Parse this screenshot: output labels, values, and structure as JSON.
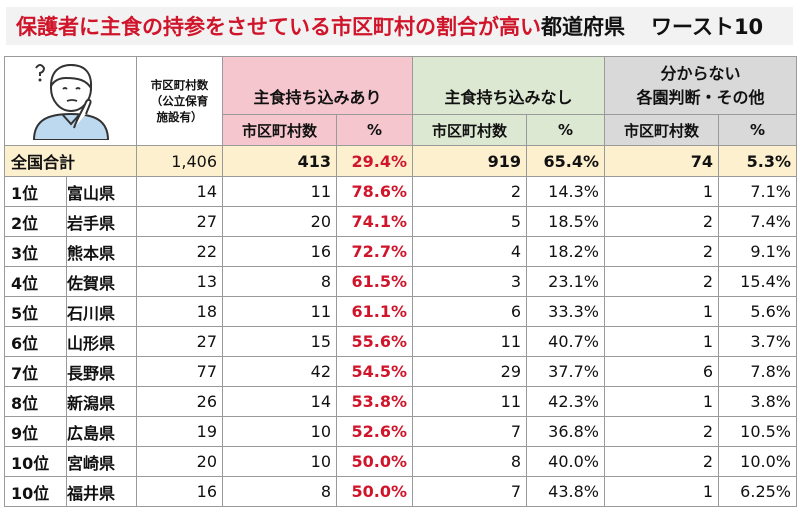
{
  "title": {
    "main": "保護者に主食の持参をさせている市区町村の割合が高い",
    "suffix": "都道府県",
    "ranking": "ワースト10"
  },
  "header": {
    "muni_count_lines": [
      "市区町村数",
      "（公立保育",
      "施設有）"
    ],
    "group_yes": "主食持ち込みあり",
    "group_no": "主食持ち込みなし",
    "group_other_line1": "分からない",
    "group_other_line2": "各園判断・その他",
    "sub_count": "市区町村数",
    "sub_pct": "%"
  },
  "total": {
    "label": "全国合計",
    "munis": "1,406",
    "yes_count": "413",
    "yes_pct": "29.4%",
    "no_count": "919",
    "no_pct": "65.4%",
    "other_count": "74",
    "other_pct": "5.3%"
  },
  "rows": [
    {
      "rank": "1位",
      "pref": "富山県",
      "munis": "14",
      "yes_count": "11",
      "yes_pct": "78.6%",
      "no_count": "2",
      "no_pct": "14.3%",
      "other_count": "1",
      "other_pct": "7.1%"
    },
    {
      "rank": "2位",
      "pref": "岩手県",
      "munis": "27",
      "yes_count": "20",
      "yes_pct": "74.1%",
      "no_count": "5",
      "no_pct": "18.5%",
      "other_count": "2",
      "other_pct": "7.4%"
    },
    {
      "rank": "3位",
      "pref": "熊本県",
      "munis": "22",
      "yes_count": "16",
      "yes_pct": "72.7%",
      "no_count": "4",
      "no_pct": "18.2%",
      "other_count": "2",
      "other_pct": "9.1%"
    },
    {
      "rank": "4位",
      "pref": "佐賀県",
      "munis": "13",
      "yes_count": "8",
      "yes_pct": "61.5%",
      "no_count": "3",
      "no_pct": "23.1%",
      "other_count": "2",
      "other_pct": "15.4%"
    },
    {
      "rank": "5位",
      "pref": "石川県",
      "munis": "18",
      "yes_count": "11",
      "yes_pct": "61.1%",
      "no_count": "6",
      "no_pct": "33.3%",
      "other_count": "1",
      "other_pct": "5.6%"
    },
    {
      "rank": "6位",
      "pref": "山形県",
      "munis": "27",
      "yes_count": "15",
      "yes_pct": "55.6%",
      "no_count": "11",
      "no_pct": "40.7%",
      "other_count": "1",
      "other_pct": "3.7%"
    },
    {
      "rank": "7位",
      "pref": "長野県",
      "munis": "77",
      "yes_count": "42",
      "yes_pct": "54.5%",
      "no_count": "29",
      "no_pct": "37.7%",
      "other_count": "6",
      "other_pct": "7.8%"
    },
    {
      "rank": "8位",
      "pref": "新潟県",
      "munis": "26",
      "yes_count": "14",
      "yes_pct": "53.8%",
      "no_count": "11",
      "no_pct": "42.3%",
      "other_count": "1",
      "other_pct": "3.8%"
    },
    {
      "rank": "9位",
      "pref": "広島県",
      "munis": "19",
      "yes_count": "10",
      "yes_pct": "52.6%",
      "no_count": "7",
      "no_pct": "36.8%",
      "other_count": "2",
      "other_pct": "10.5%"
    },
    {
      "rank": "10位",
      "pref": "宮崎県",
      "munis": "20",
      "yes_count": "10",
      "yes_pct": "50.0%",
      "no_count": "8",
      "no_pct": "40.0%",
      "other_count": "2",
      "other_pct": "10.0%"
    },
    {
      "rank": "10位",
      "pref": "福井県",
      "munis": "16",
      "yes_count": "8",
      "yes_pct": "50.0%",
      "no_count": "7",
      "no_pct": "43.8%",
      "other_count": "1",
      "other_pct": "6.25%"
    }
  ],
  "colors": {
    "accent_red": "#d0152b",
    "pink_header": "#f5c6ce",
    "green_header": "#dde8d2",
    "gray_header": "#d9d9d9",
    "total_row": "#fdf0cf"
  },
  "icons": [
    "thinking-person-icon"
  ]
}
